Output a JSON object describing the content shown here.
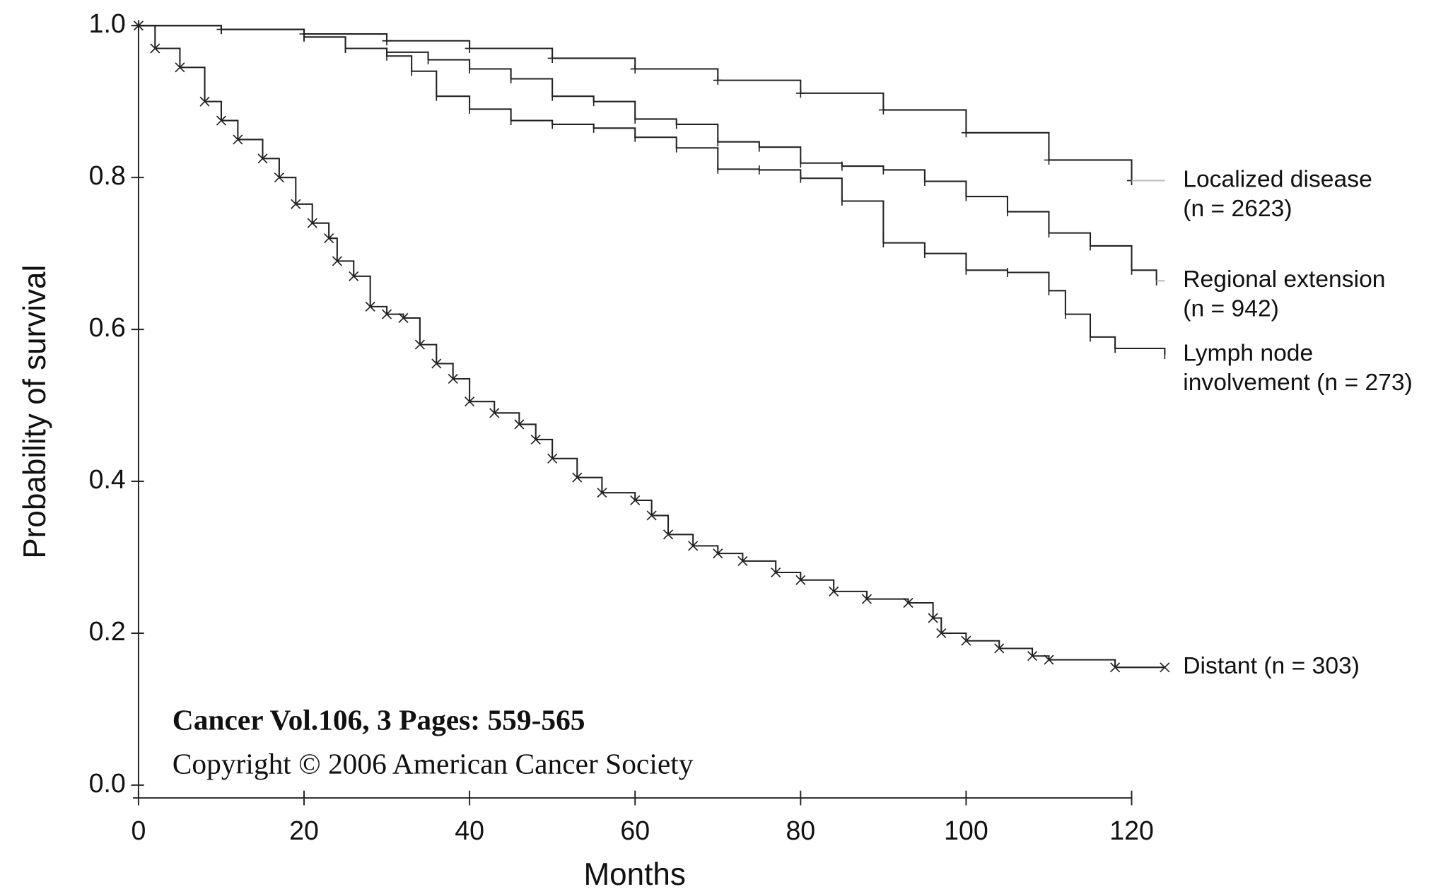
{
  "chart_data": {
    "type": "step",
    "xlabel": "Months",
    "ylabel": "Probability of survival",
    "xlim": [
      0,
      124
    ],
    "ylim": [
      0,
      1
    ],
    "xticks": [
      0,
      20,
      40,
      60,
      80,
      100,
      120
    ],
    "yticks": [
      {
        "value": 0,
        "label": "0.0"
      },
      0.2,
      0.4,
      0.6,
      0.8,
      {
        "value": 1,
        "label": "1.0"
      }
    ],
    "annotations": [
      "Cancer Vol.106, 3 Pages: 559-565",
      "Copyright © 2006 American Cancer Society"
    ],
    "series": [
      {
        "label_lines": [
          "Localized disease",
          "(n = 2623)"
        ],
        "color": "#222222",
        "marker": "+",
        "x": [
          0,
          10,
          20,
          30,
          40,
          50,
          60,
          70,
          80,
          90,
          100,
          110,
          120
        ],
        "values": [
          1.0,
          0.995,
          0.989,
          0.98,
          0.97,
          0.957,
          0.943,
          0.928,
          0.911,
          0.889,
          0.859,
          0.823,
          0.796
        ]
      },
      {
        "label_lines": [
          "Regional extension",
          "(n = 942)"
        ],
        "color": "#222222",
        "marker": "|",
        "x": [
          0,
          10,
          20,
          25,
          30,
          35,
          40,
          45,
          50,
          55,
          60,
          65,
          70,
          75,
          80,
          85,
          90,
          95,
          100,
          105,
          110,
          115,
          120,
          123
        ],
        "values": [
          1.0,
          0.995,
          0.985,
          0.97,
          0.965,
          0.955,
          0.943,
          0.93,
          0.907,
          0.9,
          0.877,
          0.87,
          0.847,
          0.84,
          0.819,
          0.815,
          0.81,
          0.795,
          0.775,
          0.755,
          0.727,
          0.71,
          0.678,
          0.664
        ]
      },
      {
        "label_lines": [
          "Lymph node",
          "involvement (n = 273)"
        ],
        "color": "#222222",
        "marker": "|",
        "x": [
          0,
          10,
          20,
          25,
          30,
          33,
          36,
          40,
          45,
          50,
          55,
          60,
          65,
          70,
          75,
          80,
          85,
          90,
          95,
          100,
          105,
          110,
          112,
          115,
          118,
          124
        ],
        "values": [
          1.0,
          0.995,
          0.985,
          0.97,
          0.96,
          0.94,
          0.907,
          0.89,
          0.875,
          0.87,
          0.865,
          0.853,
          0.839,
          0.811,
          0.81,
          0.799,
          0.769,
          0.714,
          0.7,
          0.678,
          0.675,
          0.651,
          0.62,
          0.59,
          0.575,
          0.567
        ]
      },
      {
        "label_lines": [
          "Distant (n = 303)"
        ],
        "color": "#222222",
        "marker": "x",
        "x": [
          0,
          2,
          5,
          8,
          10,
          12,
          15,
          17,
          19,
          21,
          23,
          24,
          26,
          28,
          30,
          32,
          34,
          36,
          38,
          40,
          43,
          46,
          48,
          50,
          53,
          56,
          60,
          62,
          64,
          67,
          70,
          73,
          77,
          80,
          84,
          88,
          93,
          96,
          97,
          100,
          104,
          108,
          110,
          118,
          124
        ],
        "values": [
          1.0,
          0.97,
          0.945,
          0.9,
          0.875,
          0.85,
          0.825,
          0.8,
          0.765,
          0.74,
          0.72,
          0.69,
          0.67,
          0.63,
          0.62,
          0.615,
          0.58,
          0.555,
          0.535,
          0.505,
          0.49,
          0.475,
          0.455,
          0.43,
          0.405,
          0.385,
          0.375,
          0.355,
          0.33,
          0.315,
          0.305,
          0.295,
          0.28,
          0.27,
          0.255,
          0.245,
          0.24,
          0.22,
          0.2,
          0.19,
          0.18,
          0.17,
          0.165,
          0.155,
          0.155
        ]
      }
    ]
  }
}
